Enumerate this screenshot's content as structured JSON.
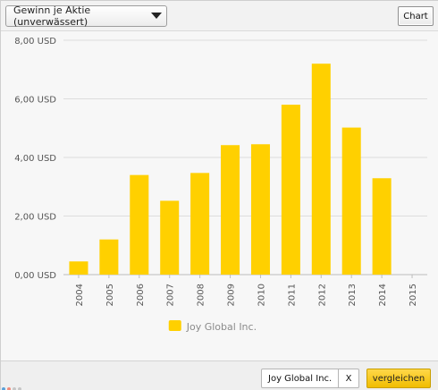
{
  "controls": {
    "metric_select": "Gewinn je Aktie (unverwässert)",
    "chart_button": "Chart",
    "company_chip": "Joy Global Inc.",
    "remove_label": "X",
    "compare_button": "vergleichen"
  },
  "colors": {
    "bar": "#ffd000",
    "grid": "#dddddd",
    "axis_text": "#555555",
    "legend_text": "#8b8b8b"
  },
  "chart_data": {
    "type": "bar",
    "categories": [
      "2004",
      "2005",
      "2006",
      "2007",
      "2008",
      "2009",
      "2010",
      "2011",
      "2012",
      "2013",
      "2014",
      "2015"
    ],
    "series": [
      {
        "name": "Joy Global Inc.",
        "values": [
          0.45,
          1.2,
          3.4,
          2.52,
          3.47,
          4.42,
          4.45,
          5.8,
          7.2,
          5.02,
          3.29,
          null
        ]
      }
    ],
    "y_ticks": [
      "0,00 USD",
      "2,00 USD",
      "4,00 USD",
      "6,00 USD",
      "8,00 USD"
    ],
    "ylim": [
      0,
      8
    ],
    "grid": true,
    "legend_position": "bottom-center"
  }
}
